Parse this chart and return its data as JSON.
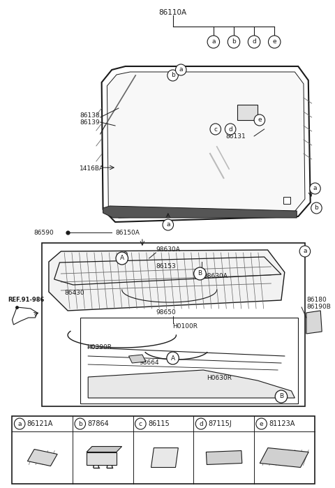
{
  "bg_color": "#ffffff",
  "lc": "#1a1a1a",
  "mgray": "#666666",
  "lgray": "#aaaaaa",
  "legend_items": [
    {
      "symbol": "a",
      "code": "86121A"
    },
    {
      "symbol": "b",
      "code": "87864"
    },
    {
      "symbol": "c",
      "code": "86115"
    },
    {
      "symbol": "d",
      "code": "87115J"
    },
    {
      "symbol": "e",
      "code": "81123A"
    }
  ]
}
